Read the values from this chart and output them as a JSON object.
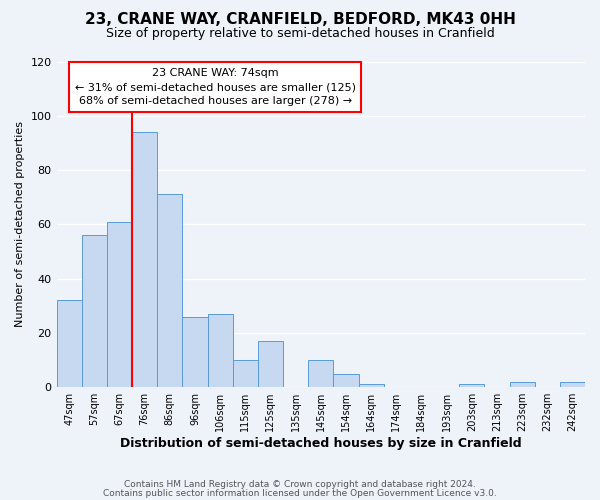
{
  "title": "23, CRANE WAY, CRANFIELD, BEDFORD, MK43 0HH",
  "subtitle": "Size of property relative to semi-detached houses in Cranfield",
  "xlabel": "Distribution of semi-detached houses by size in Cranfield",
  "ylabel": "Number of semi-detached properties",
  "bin_labels": [
    "47sqm",
    "57sqm",
    "67sqm",
    "76sqm",
    "86sqm",
    "96sqm",
    "106sqm",
    "115sqm",
    "125sqm",
    "135sqm",
    "145sqm",
    "154sqm",
    "164sqm",
    "174sqm",
    "184sqm",
    "193sqm",
    "203sqm",
    "213sqm",
    "223sqm",
    "232sqm",
    "242sqm"
  ],
  "bar_heights": [
    32,
    56,
    61,
    94,
    71,
    26,
    27,
    10,
    17,
    0,
    10,
    5,
    1,
    0,
    0,
    0,
    1,
    0,
    2,
    0,
    2
  ],
  "bar_color": "#c6d9f0",
  "bar_edge_color": "#5a9bd5",
  "property_line_index": 3,
  "property_line_color": "red",
  "annotation_text_line1": "23 CRANE WAY: 74sqm",
  "annotation_text_line2": "← 31% of semi-detached houses are smaller (125)",
  "annotation_text_line3": "68% of semi-detached houses are larger (278) →",
  "ylim": [
    0,
    120
  ],
  "yticks": [
    0,
    20,
    40,
    60,
    80,
    100,
    120
  ],
  "footer_line1": "Contains HM Land Registry data © Crown copyright and database right 2024.",
  "footer_line2": "Contains public sector information licensed under the Open Government Licence v3.0.",
  "background_color": "#eef2f9",
  "grid_color": "#ffffff",
  "title_fontsize": 11,
  "subtitle_fontsize": 9,
  "xlabel_fontsize": 9,
  "ylabel_fontsize": 8,
  "tick_fontsize": 7,
  "annotation_fontsize": 8,
  "footer_fontsize": 6.5
}
